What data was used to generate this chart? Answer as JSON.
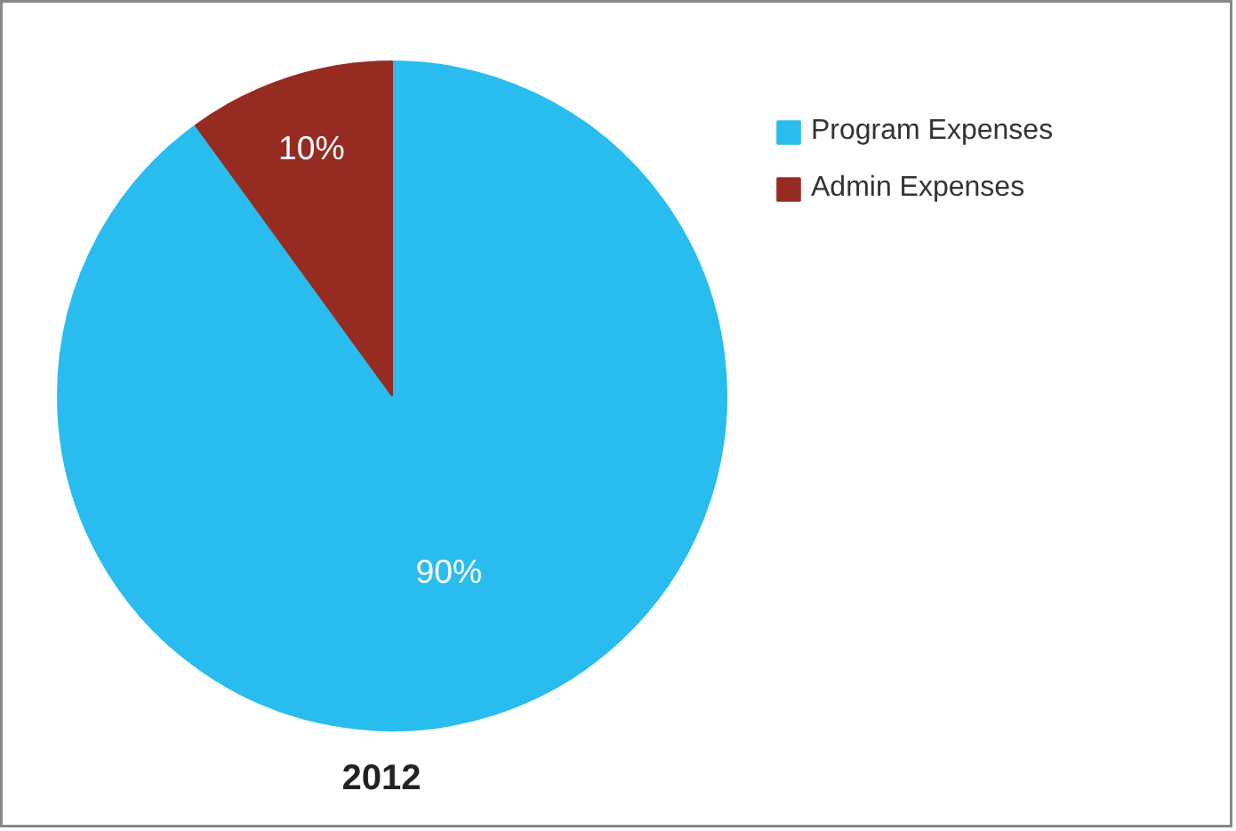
{
  "chart_data": {
    "type": "pie",
    "title": "2012",
    "categories": [
      "Program Expenses",
      "Admin Expenses"
    ],
    "values": [
      90,
      10
    ],
    "colors": [
      "#29bdef",
      "#962b22"
    ],
    "value_labels": [
      "90%",
      "10%"
    ],
    "legend": "top right"
  }
}
